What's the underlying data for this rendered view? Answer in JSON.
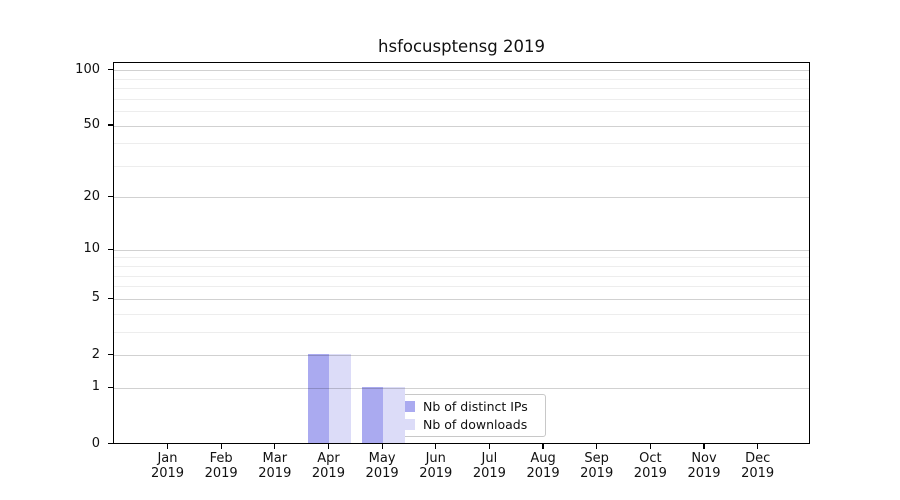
{
  "chart_data": {
    "type": "bar",
    "title": "hsfocusptensg 2019",
    "categories": [
      "Jan",
      "Feb",
      "Mar",
      "Apr",
      "May",
      "Jun",
      "Jul",
      "Aug",
      "Sep",
      "Oct",
      "Nov",
      "Dec"
    ],
    "category_year": "2019",
    "series": [
      {
        "name": "Nb of distinct IPs",
        "color": "#aaaaf0",
        "values": [
          0,
          0,
          0,
          2,
          1,
          0,
          0,
          0,
          0,
          0,
          0,
          0
        ]
      },
      {
        "name": "Nb of downloads",
        "color": "#dcdcf8",
        "values": [
          0,
          0,
          0,
          2,
          1,
          0,
          0,
          0,
          0,
          0,
          0,
          0
        ]
      }
    ],
    "y_axis": {
      "scale": "log1p",
      "major_ticks": [
        0,
        1,
        2,
        5,
        10,
        20,
        50,
        100
      ],
      "minor_gridlines": [
        3,
        4,
        6,
        7,
        8,
        9,
        30,
        40,
        60,
        70,
        80,
        90
      ],
      "ylim": [
        0,
        110
      ]
    },
    "legend": {
      "position": "lower-center",
      "entries": [
        "Nb of distinct IPs",
        "Nb of downloads"
      ]
    },
    "colors": {
      "major_grid": "rgba(0,0,0,0.18)",
      "minor_grid": "rgba(0,0,0,0.07)",
      "spine": "#000000",
      "text": "#111111"
    }
  }
}
